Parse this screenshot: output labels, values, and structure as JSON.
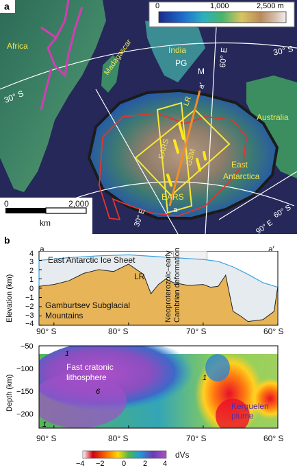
{
  "panel_a": {
    "letter": "a",
    "colorbar": {
      "min": "0",
      "mid": "1,000",
      "max": "2,500 m"
    },
    "labels": {
      "africa": "Africa",
      "madagascar": "Madagascar",
      "india": "India",
      "australia": "Australia",
      "east_antarctica_1": "East",
      "east_antarctica_2": "Antarctica",
      "lr": "LR",
      "gsm": "GSM",
      "ears_top": "EARS",
      "ears_bottom": "EARS",
      "pg": "PG",
      "m": "M",
      "a": "a",
      "a_prime": "a′",
      "lat_30s_left": "30° S",
      "lat_30s_right": "30° S",
      "lon_60e": "60° E",
      "lon_30e": "30° E",
      "lon_90e": "90° E",
      "lat_60s": "60° S"
    },
    "scalebar": {
      "zero": "0",
      "max": "2,000",
      "unit": "km"
    }
  },
  "panel_b": {
    "letter": "b",
    "profile_ends": {
      "left": "a",
      "right": "a′"
    },
    "top_chart": {
      "ylabel": "Elevation (km)",
      "yticks": [
        "4",
        "3",
        "2",
        "1",
        "0",
        "−1",
        "−2",
        "−3",
        "−4"
      ],
      "ice_label": "East Antarctic Ice Sheet",
      "lr_label": "LR",
      "mountains_label_1": "Gamburtsev Subglacial",
      "mountains_label_2": "Mountains",
      "deformation_label": "Neoproterozoic–early Cambrian deformation",
      "xticks": [
        "90° S",
        "80° S",
        "70° S",
        "60° S"
      ]
    },
    "bottom_chart": {
      "ylabel": "Depth (km)",
      "yticks": [
        "−50",
        "−100",
        "−150",
        "−200"
      ],
      "xticks": [
        "90° S",
        "80° S",
        "70° S",
        "60° S"
      ],
      "label_lithosphere_1": "Fast cratonic",
      "label_lithosphere_2": "lithosphere",
      "label_plume_1": "Kerguelen",
      "label_plume_2": "plume",
      "contour_1a": "1",
      "contour_1b": "1",
      "contour_1c": "1",
      "contour_6": "6"
    },
    "colorbar": {
      "ticks": [
        "−4",
        "−2",
        "0",
        "2",
        "4"
      ],
      "unit": "dVs",
      "colors": [
        "#d0000f",
        "#ff6a00",
        "#ffd800",
        "#4db84a",
        "#1e9cd8",
        "#6a3cb8",
        "#b050c8"
      ]
    }
  },
  "chart_data": [
    {
      "type": "area",
      "ylabel": "Elevation (km)",
      "xlabel": "",
      "ylim": [
        -4,
        4
      ],
      "xlim": [
        90,
        60
      ],
      "x_unit": "° S",
      "series": [
        {
          "name": "East Antarctic Ice Sheet",
          "x": [
            92,
            88,
            84,
            80,
            76,
            72,
            70,
            68,
            66,
            64,
            62,
            60
          ],
          "values": [
            3.0,
            3.3,
            3.5,
            3.6,
            3.4,
            3.2,
            3.1,
            2.9,
            2.3,
            1.5,
            0.6,
            0.1
          ]
        },
        {
          "name": "Gamburtsev Subglacial Mountains",
          "x": [
            92,
            90,
            88,
            86,
            84,
            82,
            80,
            78,
            77,
            76,
            75,
            74,
            72,
            70,
            69,
            68,
            67,
            66,
            65,
            64,
            62,
            60.5,
            60
          ],
          "values": [
            0.2,
            0.4,
            0.8,
            1.6,
            2.0,
            1.8,
            2.6,
            1.5,
            -0.6,
            0.4,
            1.0,
            0.6,
            0.3,
            0.4,
            0.1,
            0.2,
            1.4,
            -2.5,
            -3.0,
            -3.6,
            -3.4,
            -2.5,
            0.2
          ]
        }
      ],
      "shaded_band": [
        74,
        69.5
      ]
    },
    {
      "type": "heatmap",
      "xlabel": "",
      "ylabel": "Depth (km)",
      "xlim": [
        90,
        60
      ],
      "ylim": [
        -230,
        -40
      ],
      "colorbar_label": "dVs",
      "colorbar_range": [
        -4,
        4
      ]
    }
  ]
}
